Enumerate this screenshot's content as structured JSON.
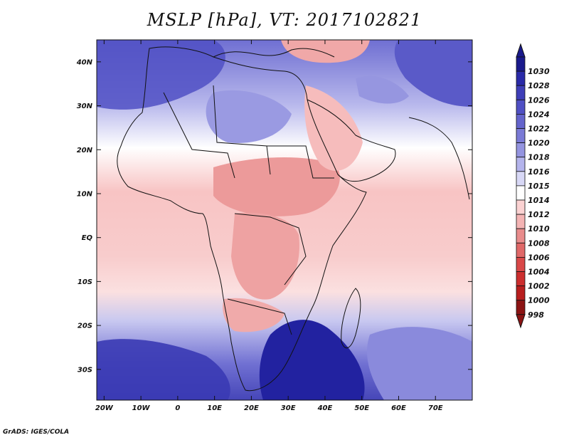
{
  "title": "MSLP [hPa], VT: 2017102821",
  "credit": "GrADS: IGES/COLA",
  "map": {
    "lon_range": [
      -22,
      80
    ],
    "lat_range": [
      -37,
      45
    ],
    "lat_ticks": [
      {
        "value": 40,
        "label": "40N"
      },
      {
        "value": 30,
        "label": "30N"
      },
      {
        "value": 20,
        "label": "20N"
      },
      {
        "value": 10,
        "label": "10N"
      },
      {
        "value": 0,
        "label": "EQ"
      },
      {
        "value": -10,
        "label": "10S"
      },
      {
        "value": -20,
        "label": "20S"
      },
      {
        "value": -30,
        "label": "30S"
      }
    ],
    "lon_ticks": [
      {
        "value": -20,
        "label": "20W"
      },
      {
        "value": -10,
        "label": "10W"
      },
      {
        "value": 0,
        "label": "0"
      },
      {
        "value": 10,
        "label": "10E"
      },
      {
        "value": 20,
        "label": "20E"
      },
      {
        "value": 30,
        "label": "30E"
      },
      {
        "value": 40,
        "label": "40E"
      },
      {
        "value": 50,
        "label": "50E"
      },
      {
        "value": 60,
        "label": "60E"
      },
      {
        "value": 70,
        "label": "70E"
      }
    ]
  },
  "colorbar": {
    "levels": [
      "1030",
      "1028",
      "1026",
      "1024",
      "1022",
      "1020",
      "1018",
      "1016",
      "1015",
      "1014",
      "1012",
      "1010",
      "1008",
      "1006",
      "1004",
      "1002",
      "1000",
      "998"
    ],
    "colors": [
      "#1a1a8c",
      "#2a2aa8",
      "#3e3eb8",
      "#5050c4",
      "#6464cc",
      "#7a7ad6",
      "#9494e0",
      "#b4b4ec",
      "#d8d8f6",
      "#ffffff",
      "#fbd2d2",
      "#f4b4b4",
      "#e98c8c",
      "#e06868",
      "#d94848",
      "#cc2e2e",
      "#b81e1e",
      "#8c1414"
    ]
  }
}
